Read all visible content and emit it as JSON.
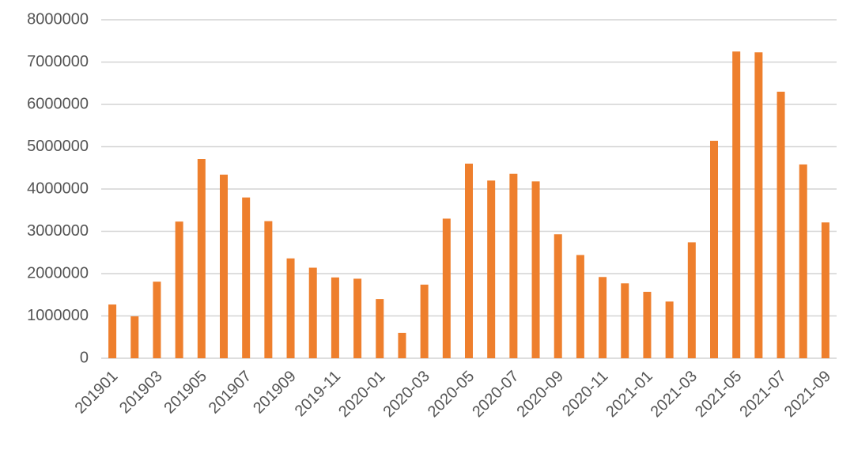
{
  "chart_data": {
    "type": "bar",
    "categories": [
      "201901",
      null,
      "201903",
      null,
      "201905",
      null,
      "201907",
      null,
      "201909",
      null,
      "2019-11",
      null,
      "2020-01",
      null,
      "2020-03",
      null,
      "2020-05",
      null,
      "2020-07",
      null,
      "2020-09",
      null,
      "2020-11",
      null,
      "2021-01",
      null,
      "2021-03",
      null,
      "2021-05",
      null,
      "2021-07",
      null,
      "2021-09"
    ],
    "values": [
      1270000,
      990000,
      1810000,
      3230000,
      4710000,
      4340000,
      3800000,
      3240000,
      2360000,
      2140000,
      1910000,
      1880000,
      1400000,
      600000,
      1740000,
      3300000,
      4600000,
      4200000,
      4360000,
      4180000,
      2930000,
      2440000,
      1920000,
      1770000,
      1570000,
      1340000,
      2740000,
      5140000,
      7250000,
      7230000,
      6300000,
      4580000,
      3210000
    ],
    "color": "#ee7f2d",
    "ylim": [
      0,
      8000000
    ],
    "yticks": [
      0,
      1000000,
      2000000,
      3000000,
      4000000,
      5000000,
      6000000,
      7000000,
      8000000
    ],
    "grid": true
  }
}
